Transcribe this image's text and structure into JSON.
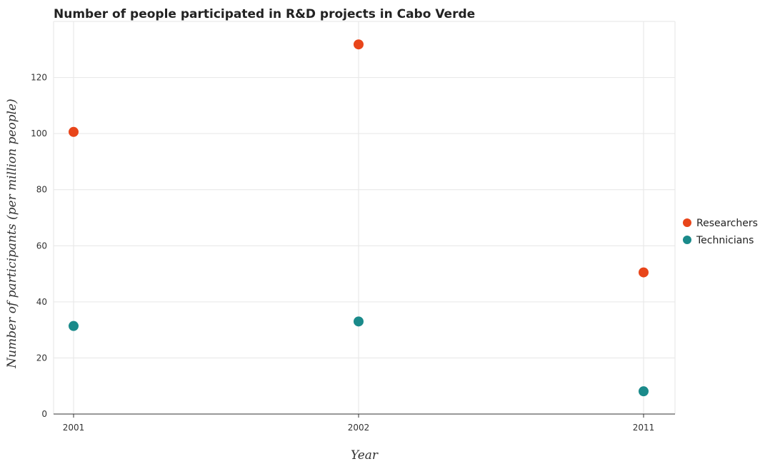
{
  "chart_data": {
    "type": "scatter",
    "title": "Number of people participated in R&D projects in Cabo Verde",
    "xlabel": "Year",
    "ylabel": "Number of participants (per million people)",
    "categories": [
      "2001",
      "2002",
      "2011"
    ],
    "ylim": [
      0,
      140
    ],
    "yticks": [
      0,
      20,
      40,
      60,
      80,
      100,
      120
    ],
    "grid": true,
    "legend_position": "right",
    "series": [
      {
        "name": "Researchers",
        "color": "#e8451a",
        "values": [
          100.6,
          131.8,
          50.5
        ]
      },
      {
        "name": "Technicians",
        "color": "#1a8a8a",
        "values": [
          31.4,
          33.0,
          8.1
        ]
      }
    ]
  }
}
